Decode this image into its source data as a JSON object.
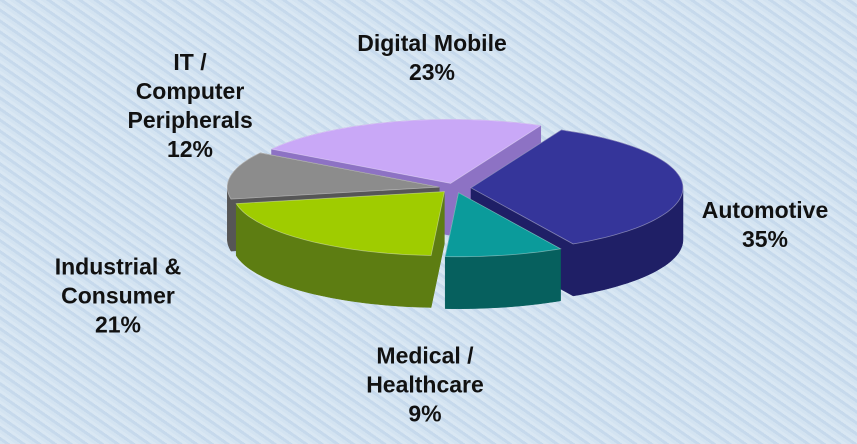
{
  "chart_data": {
    "type": "pie3d",
    "categories": [
      "Digital Mobile",
      "Automotive",
      "Medical / Healthcare",
      "Industrial & Consumer",
      "IT / Computer Peripherals"
    ],
    "values": [
      23,
      35,
      9,
      21,
      12
    ],
    "value_labels": [
      "23%",
      "35%",
      "9%",
      "21%",
      "12%"
    ],
    "colors": [
      "#c9a8f7",
      "#35359a",
      "#0b9b9b",
      "#9fcc00",
      "#8c8c8c"
    ],
    "side_colors": [
      "#8d72c4",
      "#1f1f66",
      "#06605e",
      "#5d7d12",
      "#565656"
    ]
  }
}
